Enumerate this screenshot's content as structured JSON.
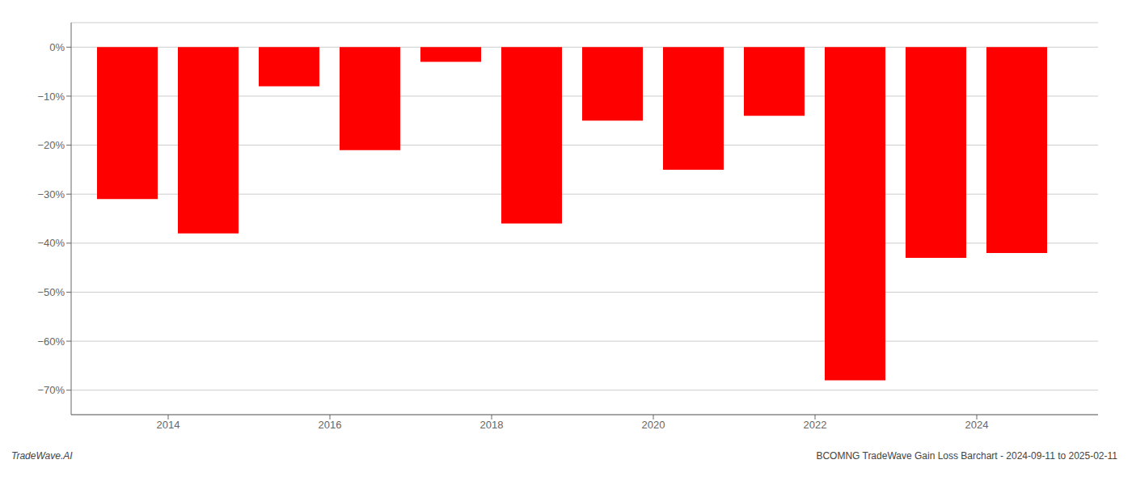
{
  "chart_data": {
    "type": "bar",
    "x": [
      2013.5,
      2014.5,
      2015.5,
      2016.5,
      2017.5,
      2018.5,
      2019.5,
      2020.5,
      2021.5,
      2022.5,
      2023.5,
      2024.5
    ],
    "values": [
      -31,
      -38,
      -8,
      -21,
      -3,
      -36,
      -15,
      -25,
      -14,
      -68,
      -43,
      -42
    ],
    "color": "#ff0000",
    "xlim": [
      2012.8,
      2025.5
    ],
    "xticks": [
      2014,
      2016,
      2018,
      2020,
      2022,
      2024
    ],
    "ylim": [
      -75,
      5
    ],
    "yticks": [
      {
        "value": 0,
        "label": "0%"
      },
      {
        "value": -10,
        "label": "−10%"
      },
      {
        "value": -20,
        "label": "−20%"
      },
      {
        "value": -30,
        "label": "−30%"
      },
      {
        "value": -40,
        "label": "−40%"
      },
      {
        "value": -50,
        "label": "−50%"
      },
      {
        "value": -60,
        "label": "−60%"
      },
      {
        "value": -70,
        "label": "−70%"
      }
    ],
    "grid": true,
    "annotations": [
      "TradeWave.AI",
      "BCOMNG TradeWave Gain Loss Barchart - 2024-09-11 to 2025-02-11"
    ]
  }
}
